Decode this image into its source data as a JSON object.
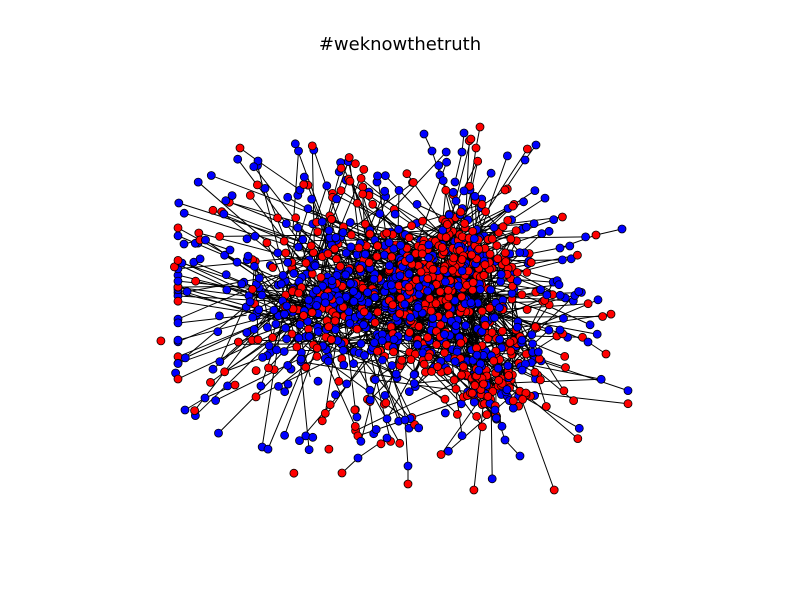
{
  "title": "#weknowthetruth",
  "colors": {
    "background": "#ffffff",
    "node_red": "#ff0000",
    "node_blue": "#0000ff",
    "node_stroke": "#000000",
    "edge": "#000000"
  },
  "legend": null
}
